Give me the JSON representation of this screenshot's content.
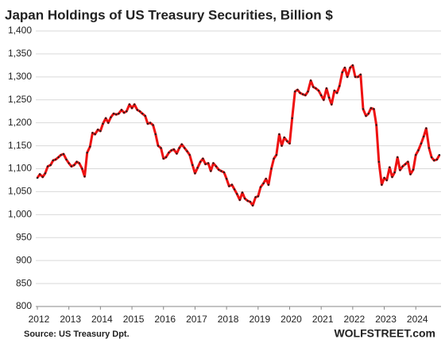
{
  "chart_data": {
    "type": "line",
    "title": "Japan Holdings of US Treasury Securities, Billion $",
    "source": "Source: US Treasury  Dpt.",
    "brand": "WOLFSTREET.com",
    "x": [
      2012,
      2012.08,
      2012.17,
      2012.25,
      2012.33,
      2012.42,
      2012.5,
      2012.58,
      2012.67,
      2012.75,
      2012.83,
      2012.92,
      2013,
      2013.08,
      2013.17,
      2013.25,
      2013.33,
      2013.42,
      2013.5,
      2013.58,
      2013.67,
      2013.75,
      2013.83,
      2013.92,
      2014,
      2014.08,
      2014.17,
      2014.25,
      2014.33,
      2014.42,
      2014.5,
      2014.58,
      2014.67,
      2014.75,
      2014.83,
      2014.92,
      2015,
      2015.08,
      2015.17,
      2015.25,
      2015.33,
      2015.42,
      2015.5,
      2015.58,
      2015.67,
      2015.75,
      2015.83,
      2015.92,
      2016,
      2016.08,
      2016.17,
      2016.25,
      2016.33,
      2016.42,
      2016.5,
      2016.58,
      2016.67,
      2016.75,
      2016.83,
      2016.92,
      2017,
      2017.08,
      2017.17,
      2017.25,
      2017.33,
      2017.42,
      2017.5,
      2017.58,
      2017.67,
      2017.75,
      2017.83,
      2017.92,
      2018,
      2018.08,
      2018.17,
      2018.25,
      2018.33,
      2018.42,
      2018.5,
      2018.58,
      2018.67,
      2018.75,
      2018.83,
      2018.92,
      2019,
      2019.08,
      2019.17,
      2019.25,
      2019.33,
      2019.42,
      2019.5,
      2019.58,
      2019.67,
      2019.75,
      2019.83,
      2019.92,
      2020,
      2020.08,
      2020.17,
      2020.25,
      2020.33,
      2020.42,
      2020.5,
      2020.58,
      2020.67,
      2020.75,
      2020.83,
      2020.92,
      2021,
      2021.08,
      2021.17,
      2021.25,
      2021.33,
      2021.42,
      2021.5,
      2021.58,
      2021.67,
      2021.75,
      2021.83,
      2021.92,
      2022,
      2022.08,
      2022.17,
      2022.25,
      2022.33,
      2022.42,
      2022.5,
      2022.58,
      2022.67,
      2022.75,
      2022.83,
      2022.92,
      2023,
      2023.08,
      2023.17,
      2023.25,
      2023.33,
      2023.42,
      2023.5,
      2023.58,
      2023.67,
      2023.75,
      2023.83,
      2023.92,
      2024,
      2024.08,
      2024.17,
      2024.25,
      2024.33,
      2024.42,
      2024.5,
      2024.58,
      2024.67,
      2024.75
    ],
    "series": [
      {
        "name": "Japan",
        "color": "#ee1111",
        "marker_color": "#222222",
        "values": [
          1080,
          1088,
          1082,
          1090,
          1105,
          1108,
          1118,
          1120,
          1125,
          1130,
          1132,
          1120,
          1112,
          1105,
          1108,
          1115,
          1112,
          1100,
          1083,
          1135,
          1148,
          1178,
          1175,
          1185,
          1182,
          1198,
          1210,
          1200,
          1212,
          1220,
          1218,
          1220,
          1228,
          1222,
          1225,
          1240,
          1232,
          1240,
          1228,
          1225,
          1220,
          1215,
          1198,
          1200,
          1195,
          1175,
          1150,
          1145,
          1122,
          1125,
          1135,
          1140,
          1142,
          1133,
          1145,
          1153,
          1145,
          1138,
          1130,
          1108,
          1090,
          1102,
          1115,
          1122,
          1110,
          1112,
          1095,
          1112,
          1105,
          1098,
          1095,
          1092,
          1078,
          1062,
          1065,
          1055,
          1045,
          1032,
          1048,
          1035,
          1030,
          1028,
          1020,
          1038,
          1040,
          1060,
          1068,
          1078,
          1065,
          1100,
          1122,
          1130,
          1175,
          1150,
          1168,
          1160,
          1155,
          1210,
          1268,
          1272,
          1265,
          1262,
          1260,
          1268,
          1292,
          1278,
          1275,
          1270,
          1260,
          1250,
          1275,
          1255,
          1240,
          1270,
          1265,
          1280,
          1310,
          1320,
          1300,
          1320,
          1325,
          1300,
          1300,
          1305,
          1230,
          1215,
          1220,
          1232,
          1230,
          1195,
          1115,
          1065,
          1080,
          1075,
          1103,
          1082,
          1092,
          1125,
          1097,
          1105,
          1110,
          1115,
          1088,
          1098,
          1130,
          1140,
          1155,
          1170,
          1188,
          1145,
          1125,
          1118,
          1120,
          1130
        ]
      }
    ],
    "xlim": [
      2011.95,
      2024.8
    ],
    "xticks": [
      2012,
      2013,
      2014,
      2015,
      2016,
      2017,
      2018,
      2019,
      2020,
      2021,
      2022,
      2023,
      2024
    ],
    "ylim": [
      800,
      1400
    ],
    "yticks": [
      800,
      850,
      900,
      950,
      {
        "value": 1000,
        "label": "1,000"
      },
      {
        "value": 1050,
        "label": "1,050"
      },
      {
        "value": 1100,
        "label": "1,100"
      },
      {
        "value": 1150,
        "label": "1,150"
      },
      {
        "value": 1200,
        "label": "1,200"
      },
      {
        "value": 1250,
        "label": "1,250"
      },
      {
        "value": 1300,
        "label": "1,300"
      },
      {
        "value": 1350,
        "label": "1,350"
      },
      {
        "value": 1400,
        "label": "1,400"
      }
    ],
    "grid": true
  }
}
